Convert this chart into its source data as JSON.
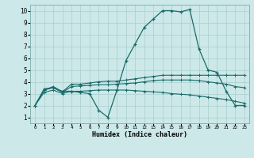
{
  "title": "",
  "xlabel": "Humidex (Indice chaleur)",
  "ylabel": "",
  "bg_color": "#cce8e8",
  "line_color": "#1a6b6b",
  "grid_color": "#aacece",
  "xlim": [
    -0.5,
    23.5
  ],
  "ylim": [
    0.5,
    10.5
  ],
  "yticks": [
    1,
    2,
    3,
    4,
    5,
    6,
    7,
    8,
    9,
    10
  ],
  "xticks": [
    0,
    1,
    2,
    3,
    4,
    5,
    6,
    7,
    8,
    9,
    10,
    11,
    12,
    13,
    14,
    15,
    16,
    17,
    18,
    19,
    20,
    21,
    22,
    23
  ],
  "curve1_x": [
    0,
    1,
    2,
    3,
    4,
    5,
    6,
    7,
    8,
    9,
    10,
    11,
    12,
    13,
    14,
    15,
    16,
    17,
    18,
    19,
    20,
    21,
    22,
    23
  ],
  "curve1_y": [
    2.0,
    3.4,
    3.5,
    3.2,
    3.2,
    3.1,
    3.0,
    1.6,
    1.0,
    3.3,
    5.8,
    7.2,
    8.6,
    9.3,
    10.0,
    10.0,
    9.9,
    10.1,
    6.8,
    5.0,
    4.8,
    3.2,
    2.0,
    2.0
  ],
  "curve2_x": [
    0,
    1,
    2,
    3,
    4,
    5,
    6,
    7,
    8,
    9,
    10,
    11,
    12,
    13,
    14,
    15,
    16,
    17,
    18,
    19,
    20,
    21,
    22,
    23
  ],
  "curve2_y": [
    2.0,
    3.3,
    3.6,
    3.15,
    3.8,
    3.8,
    3.9,
    4.0,
    4.05,
    4.05,
    4.15,
    4.25,
    4.35,
    4.45,
    4.55,
    4.55,
    4.55,
    4.55,
    4.55,
    4.55,
    4.55,
    4.55,
    4.55,
    4.55
  ],
  "curve3_x": [
    0,
    1,
    2,
    3,
    4,
    5,
    6,
    7,
    8,
    9,
    10,
    11,
    12,
    13,
    14,
    15,
    16,
    17,
    18,
    19,
    20,
    21,
    22,
    23
  ],
  "curve3_y": [
    2.0,
    3.3,
    3.5,
    3.1,
    3.6,
    3.65,
    3.7,
    3.75,
    3.75,
    3.8,
    3.85,
    3.9,
    4.0,
    4.1,
    4.15,
    4.15,
    4.15,
    4.15,
    4.1,
    4.0,
    3.9,
    3.8,
    3.6,
    3.5
  ],
  "curve4_x": [
    0,
    1,
    2,
    3,
    4,
    5,
    6,
    7,
    8,
    9,
    10,
    11,
    12,
    13,
    14,
    15,
    16,
    17,
    18,
    19,
    20,
    21,
    22,
    23
  ],
  "curve4_y": [
    2.0,
    3.1,
    3.3,
    3.0,
    3.2,
    3.2,
    3.25,
    3.3,
    3.3,
    3.3,
    3.3,
    3.25,
    3.2,
    3.15,
    3.1,
    3.0,
    2.95,
    2.9,
    2.8,
    2.7,
    2.6,
    2.5,
    2.35,
    2.2
  ]
}
